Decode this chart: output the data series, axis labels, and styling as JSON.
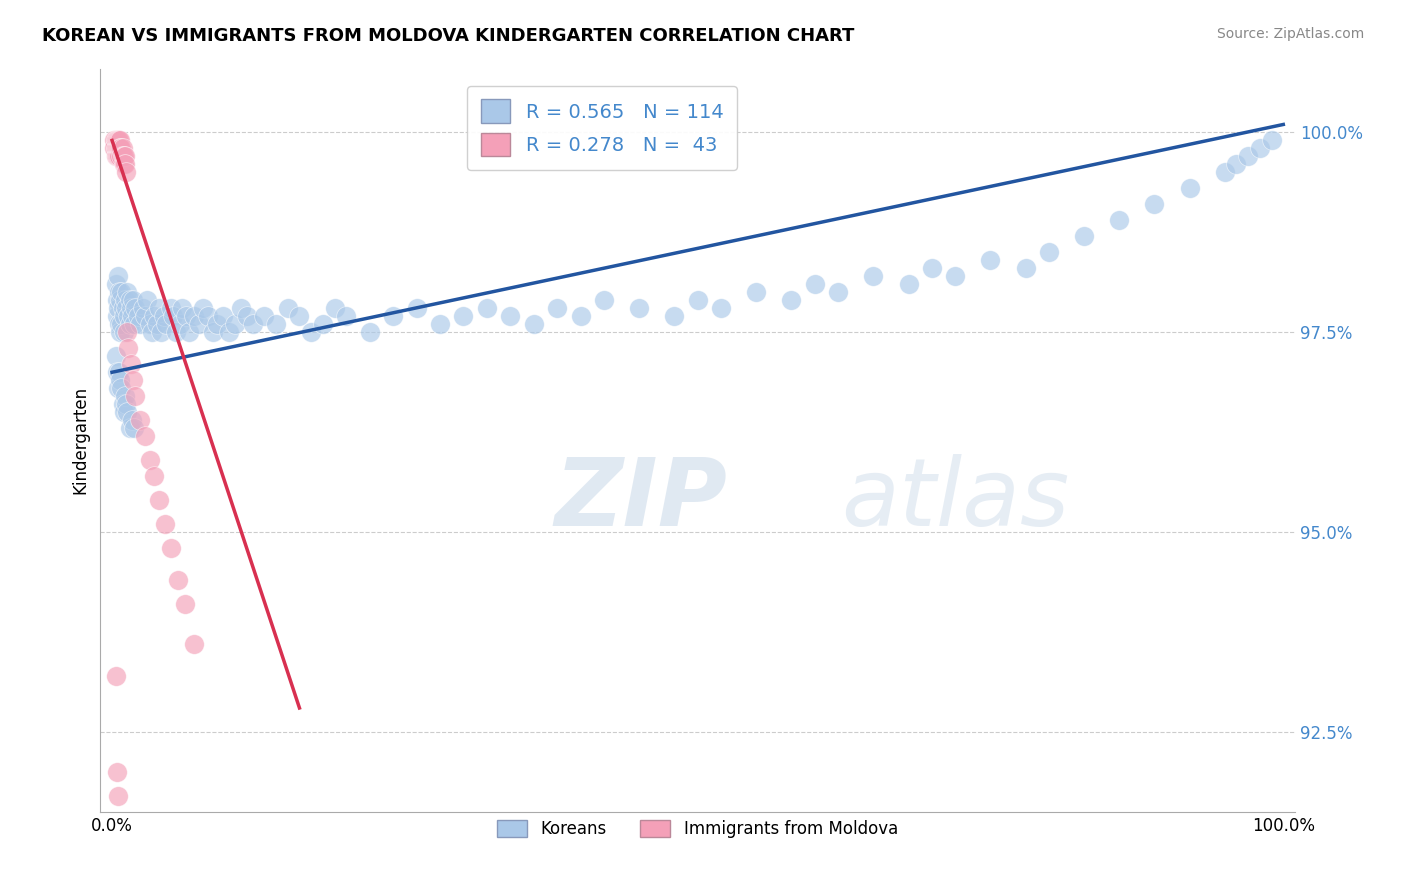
{
  "title": "KOREAN VS IMMIGRANTS FROM MOLDOVA KINDERGARTEN CORRELATION CHART",
  "source": "Source: ZipAtlas.com",
  "ylabel": "Kindergarten",
  "ytick_labels": [
    "92.5%",
    "95.0%",
    "97.5%",
    "100.0%"
  ],
  "ytick_values": [
    0.925,
    0.95,
    0.975,
    1.0
  ],
  "xlim": [
    -0.01,
    1.01
  ],
  "ylim": [
    0.915,
    1.008
  ],
  "legend_blue_r": "0.565",
  "legend_blue_n": "114",
  "legend_pink_r": "0.278",
  "legend_pink_n": "43",
  "blue_color": "#aac8e8",
  "pink_color": "#f4a0b8",
  "blue_line_color": "#2255a0",
  "pink_line_color": "#d83050",
  "watermark_zip": "ZIP",
  "watermark_atlas": "atlas",
  "blue_scatter_x": [
    0.003,
    0.004,
    0.004,
    0.005,
    0.005,
    0.006,
    0.006,
    0.007,
    0.007,
    0.008,
    0.008,
    0.009,
    0.01,
    0.01,
    0.011,
    0.012,
    0.013,
    0.014,
    0.015,
    0.015,
    0.016,
    0.017,
    0.018,
    0.019,
    0.02,
    0.022,
    0.024,
    0.026,
    0.028,
    0.03,
    0.032,
    0.034,
    0.036,
    0.038,
    0.04,
    0.042,
    0.044,
    0.046,
    0.05,
    0.052,
    0.055,
    0.058,
    0.06,
    0.063,
    0.066,
    0.07,
    0.074,
    0.078,
    0.082,
    0.086,
    0.09,
    0.095,
    0.1,
    0.105,
    0.11,
    0.115,
    0.12,
    0.13,
    0.14,
    0.15,
    0.16,
    0.17,
    0.18,
    0.19,
    0.2,
    0.22,
    0.24,
    0.26,
    0.28,
    0.3,
    0.32,
    0.34,
    0.36,
    0.38,
    0.4,
    0.42,
    0.45,
    0.48,
    0.5,
    0.52,
    0.55,
    0.58,
    0.6,
    0.62,
    0.65,
    0.68,
    0.7,
    0.72,
    0.75,
    0.78,
    0.8,
    0.83,
    0.86,
    0.89,
    0.92,
    0.95,
    0.96,
    0.97,
    0.98,
    0.99,
    0.0035,
    0.0045,
    0.005,
    0.006,
    0.007,
    0.008,
    0.009,
    0.01,
    0.011,
    0.012,
    0.013,
    0.015,
    0.017,
    0.019
  ],
  "blue_scatter_y": [
    0.981,
    0.979,
    0.977,
    0.982,
    0.978,
    0.98,
    0.976,
    0.979,
    0.975,
    0.98,
    0.976,
    0.978,
    0.977,
    0.975,
    0.979,
    0.978,
    0.98,
    0.977,
    0.976,
    0.979,
    0.978,
    0.977,
    0.979,
    0.976,
    0.978,
    0.977,
    0.976,
    0.978,
    0.977,
    0.979,
    0.976,
    0.975,
    0.977,
    0.976,
    0.978,
    0.975,
    0.977,
    0.976,
    0.978,
    0.977,
    0.975,
    0.976,
    0.978,
    0.977,
    0.975,
    0.977,
    0.976,
    0.978,
    0.977,
    0.975,
    0.976,
    0.977,
    0.975,
    0.976,
    0.978,
    0.977,
    0.976,
    0.977,
    0.976,
    0.978,
    0.977,
    0.975,
    0.976,
    0.978,
    0.977,
    0.975,
    0.977,
    0.978,
    0.976,
    0.977,
    0.978,
    0.977,
    0.976,
    0.978,
    0.977,
    0.979,
    0.978,
    0.977,
    0.979,
    0.978,
    0.98,
    0.979,
    0.981,
    0.98,
    0.982,
    0.981,
    0.983,
    0.982,
    0.984,
    0.983,
    0.985,
    0.987,
    0.989,
    0.991,
    0.993,
    0.995,
    0.996,
    0.997,
    0.998,
    0.999,
    0.972,
    0.97,
    0.968,
    0.97,
    0.969,
    0.968,
    0.966,
    0.965,
    0.967,
    0.966,
    0.965,
    0.963,
    0.964,
    0.963
  ],
  "pink_scatter_x": [
    0.002,
    0.002,
    0.003,
    0.003,
    0.003,
    0.004,
    0.004,
    0.004,
    0.005,
    0.005,
    0.005,
    0.006,
    0.006,
    0.006,
    0.007,
    0.007,
    0.008,
    0.008,
    0.009,
    0.009,
    0.01,
    0.01,
    0.011,
    0.011,
    0.012,
    0.013,
    0.014,
    0.016,
    0.018,
    0.02,
    0.024,
    0.028,
    0.032,
    0.036,
    0.04,
    0.045,
    0.05,
    0.056,
    0.062,
    0.07,
    0.003,
    0.004,
    0.005
  ],
  "pink_scatter_y": [
    0.999,
    0.998,
    0.999,
    0.998,
    0.997,
    0.999,
    0.998,
    0.997,
    0.999,
    0.998,
    0.997,
    0.999,
    0.998,
    0.997,
    0.999,
    0.998,
    0.998,
    0.997,
    0.998,
    0.997,
    0.997,
    0.996,
    0.997,
    0.996,
    0.995,
    0.975,
    0.973,
    0.971,
    0.969,
    0.967,
    0.964,
    0.962,
    0.959,
    0.957,
    0.954,
    0.951,
    0.948,
    0.944,
    0.941,
    0.936,
    0.932,
    0.92,
    0.917
  ]
}
